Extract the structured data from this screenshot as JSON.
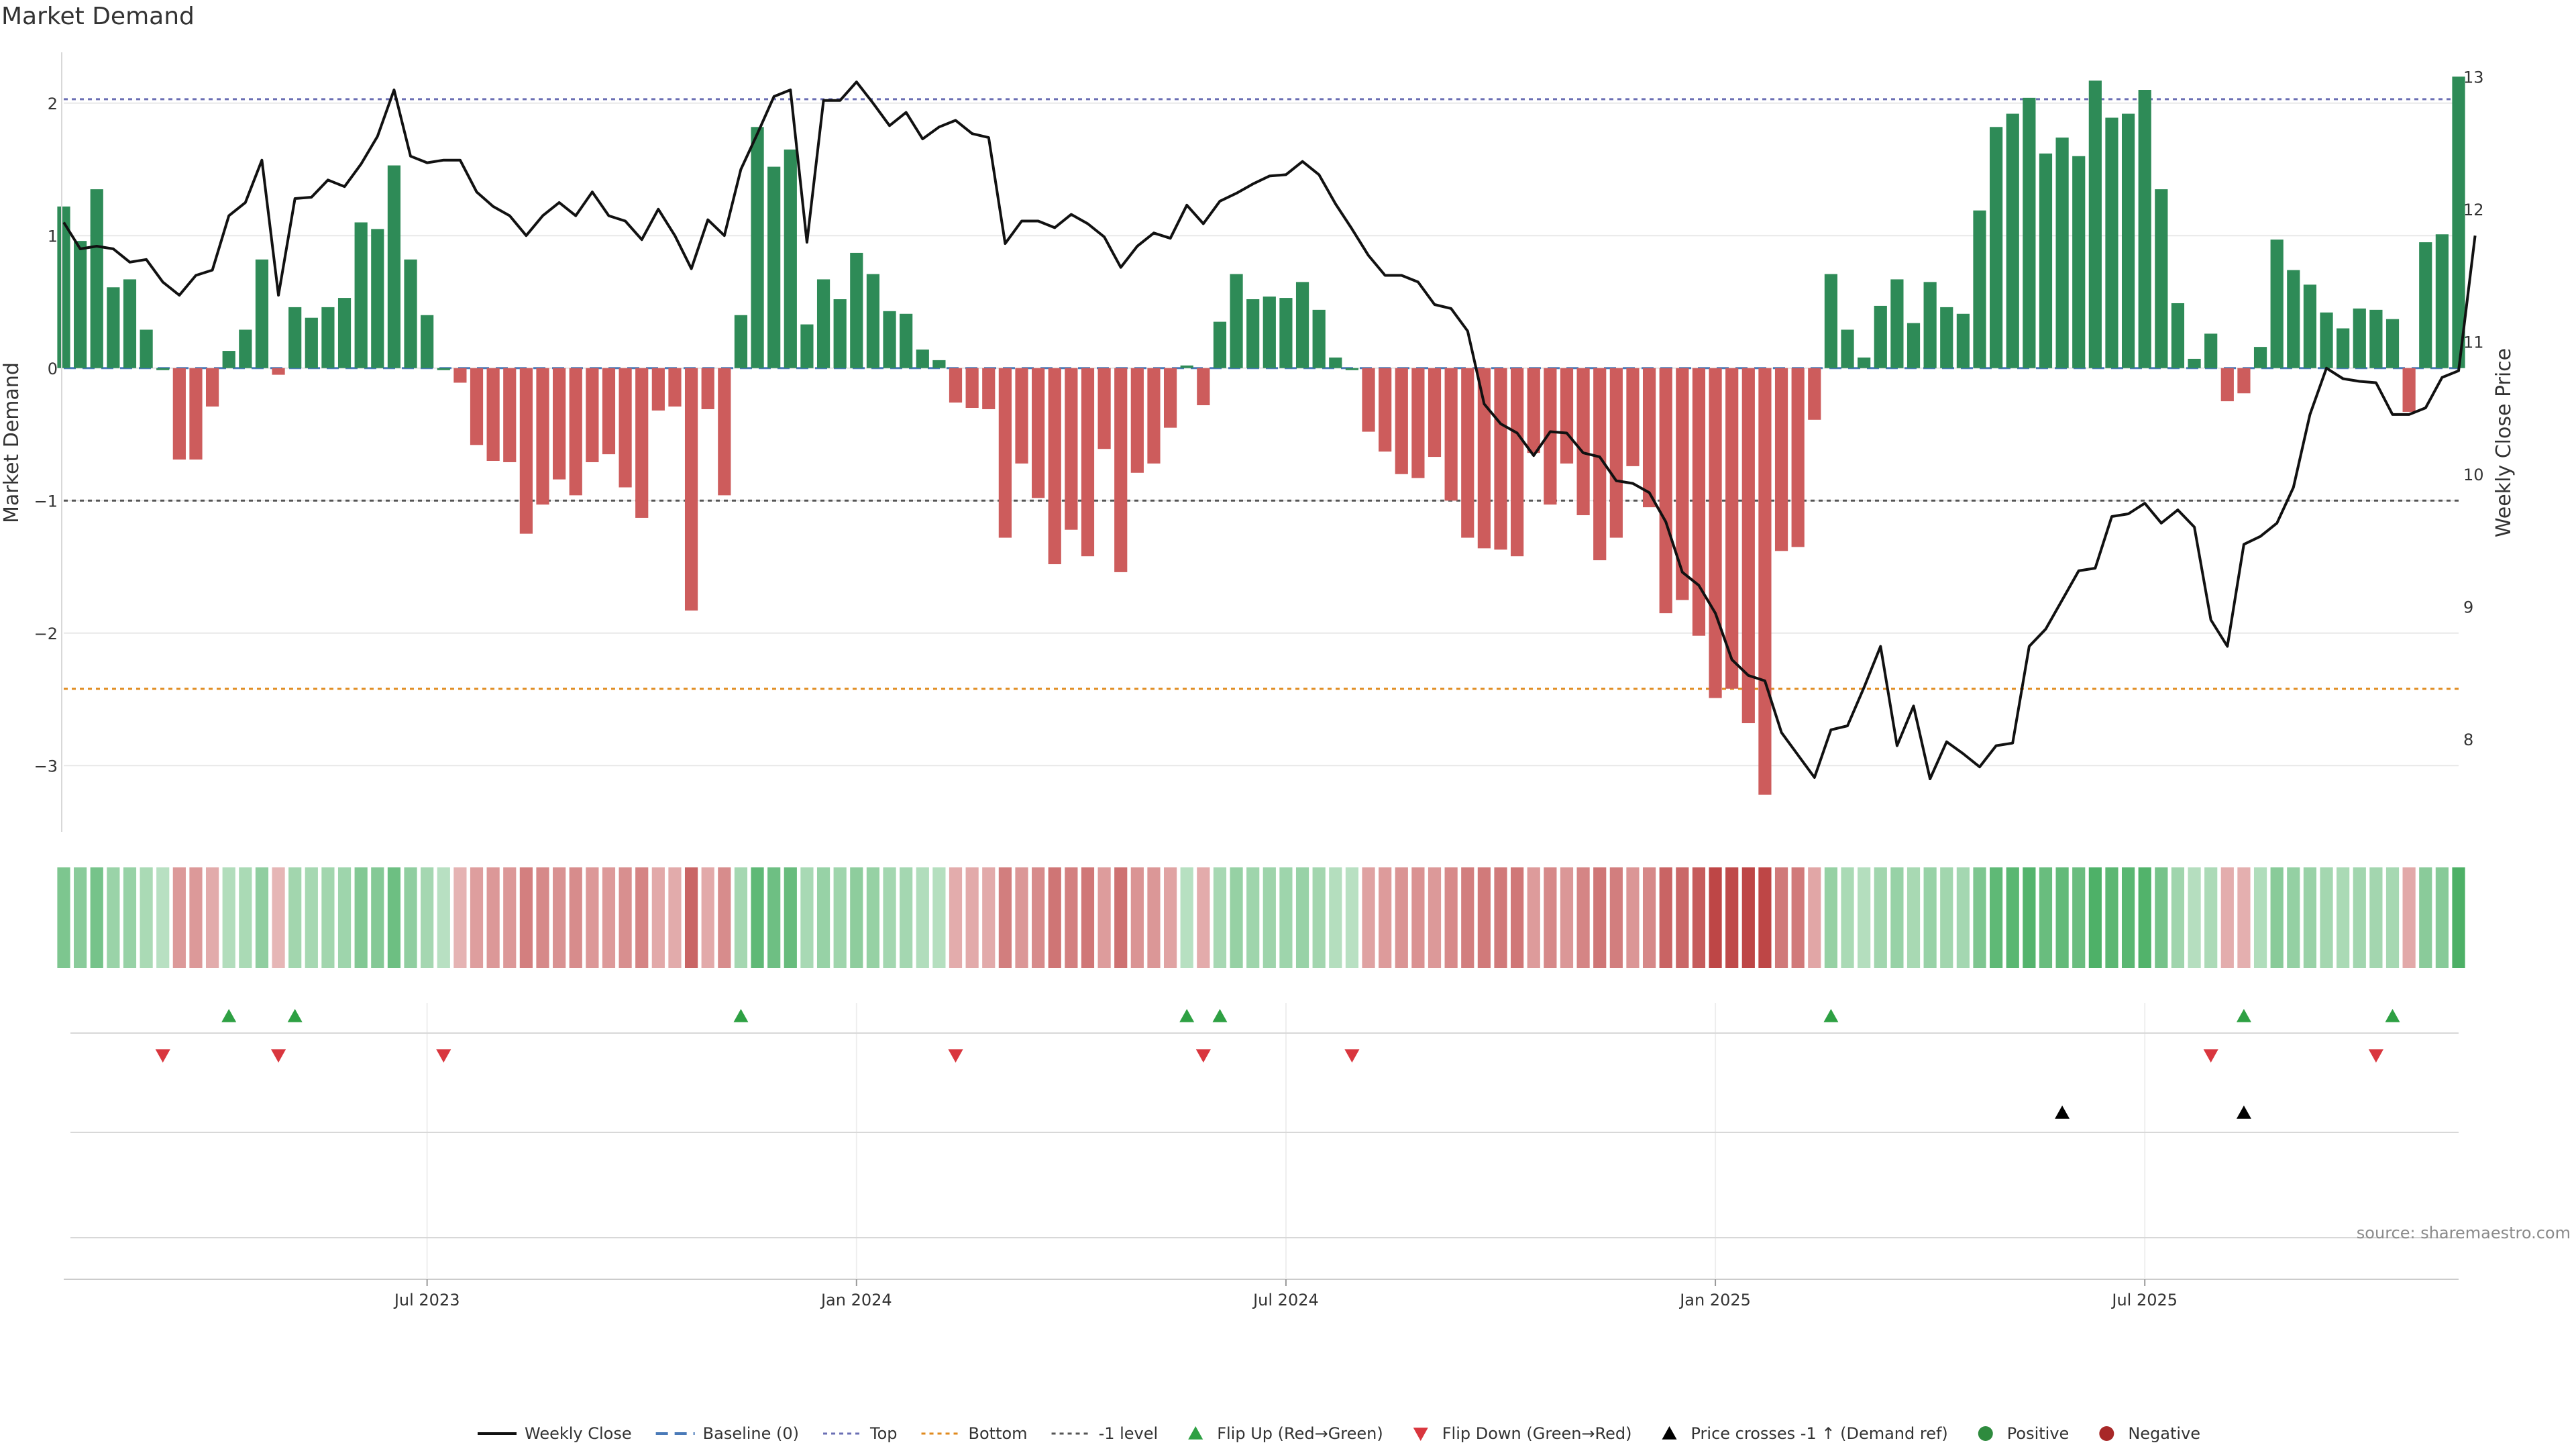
{
  "title": "Market Demand",
  "source": "source: sharemaestro.com",
  "chart_data": {
    "type": "bar",
    "title": "Market Demand",
    "ylabel": "Market Demand",
    "y2label": "Weekly Close Price",
    "ylim": [
      -3.5,
      2.5
    ],
    "y2lim": [
      7.3,
      13.3
    ],
    "yticks": [
      2,
      1,
      0,
      -1,
      -2,
      -3
    ],
    "y2ticks": [
      13,
      12,
      11,
      10,
      9,
      8
    ],
    "x_tick_labels": [
      "Jul 2023",
      "Jan 2024",
      "Jul 2024",
      "Jan 2025",
      "Jul 2025"
    ],
    "x_tick_index": [
      22,
      48,
      74,
      100,
      126
    ],
    "reference_lines": {
      "top": 2.03,
      "bottom": -2.42,
      "minus_one": -1.0,
      "baseline": 0
    },
    "demand": [
      1.22,
      0.96,
      1.35,
      0.61,
      0.67,
      0.29,
      0.0,
      -0.69,
      -0.69,
      -0.29,
      0.13,
      0.29,
      0.82,
      -0.05,
      0.46,
      0.38,
      0.46,
      0.53,
      1.1,
      1.05,
      1.53,
      0.82,
      0.4,
      0.0,
      -0.11,
      -0.58,
      -0.7,
      -0.71,
      -1.25,
      -1.03,
      -0.84,
      -0.96,
      -0.71,
      -0.65,
      -0.9,
      -1.13,
      -0.32,
      -0.29,
      -1.83,
      -0.31,
      -0.96,
      0.4,
      1.82,
      1.52,
      1.65,
      0.33,
      0.67,
      0.52,
      0.87,
      0.71,
      0.43,
      0.41,
      0.14,
      0.06,
      -0.26,
      -0.3,
      -0.31,
      -1.28,
      -0.72,
      -0.98,
      -1.48,
      -1.22,
      -1.42,
      -0.61,
      -1.54,
      -0.79,
      -0.72,
      -0.45,
      0.02,
      -0.28,
      0.35,
      0.71,
      0.52,
      0.54,
      0.53,
      0.65,
      0.44,
      0.08,
      0.0,
      -0.48,
      -0.63,
      -0.8,
      -0.83,
      -0.67,
      -1.0,
      -1.28,
      -1.36,
      -1.37,
      -1.42,
      -0.64,
      -1.03,
      -0.72,
      -1.11,
      -1.45,
      -1.28,
      -0.74,
      -1.05,
      -1.85,
      -1.75,
      -2.02,
      -2.49,
      -2.42,
      -2.68,
      -3.22,
      -1.38,
      -1.35,
      -0.39,
      0.71,
      0.29,
      0.08,
      0.47,
      0.67,
      0.34,
      0.65,
      0.46,
      0.41,
      1.19,
      1.82,
      1.92,
      2.04,
      1.62,
      1.74,
      1.6,
      2.17,
      1.89,
      1.92,
      2.1,
      1.35,
      0.49,
      0.07,
      0.26,
      -0.25,
      -0.19,
      0.16,
      0.97,
      0.74,
      0.63,
      0.42,
      0.3,
      0.45,
      0.44,
      0.37,
      -0.33,
      0.95,
      1.01,
      2.2
    ],
    "weekly_close": [
      11.9,
      11.7,
      11.72,
      11.7,
      11.6,
      11.62,
      11.45,
      11.35,
      11.5,
      11.54,
      11.95,
      12.05,
      12.37,
      11.35,
      12.08,
      12.09,
      12.22,
      12.17,
      12.34,
      12.55,
      12.9,
      12.4,
      12.35,
      12.37,
      12.37,
      12.13,
      12.02,
      11.95,
      11.8,
      11.95,
      12.05,
      11.95,
      12.13,
      11.95,
      11.91,
      11.77,
      12.0,
      11.8,
      11.55,
      11.92,
      11.8,
      12.3,
      12.57,
      12.85,
      12.9,
      11.75,
      12.82,
      12.82,
      12.96,
      12.8,
      12.63,
      12.73,
      12.53,
      12.62,
      12.67,
      12.57,
      12.54,
      11.74,
      11.91,
      11.91,
      11.86,
      11.96,
      11.89,
      11.79,
      11.56,
      11.72,
      11.82,
      11.78,
      12.03,
      11.89,
      12.06,
      12.12,
      12.19,
      12.25,
      12.26,
      12.36,
      12.26,
      12.04,
      11.85,
      11.65,
      11.5,
      11.5,
      11.45,
      11.28,
      11.25,
      11.08,
      10.53,
      10.38,
      10.31,
      10.14,
      10.32,
      10.31,
      10.16,
      10.13,
      9.95,
      9.93,
      9.86,
      9.64,
      9.26,
      9.16,
      8.95,
      8.6,
      8.48,
      8.44,
      8.05,
      7.88,
      7.71,
      8.07,
      8.1,
      8.39,
      8.7,
      7.95,
      8.25,
      7.7,
      7.98,
      7.89,
      7.79,
      7.95,
      7.97,
      8.7,
      8.83,
      9.05,
      9.27,
      9.29,
      9.68,
      9.7,
      9.78,
      9.63,
      9.73,
      9.6,
      8.9,
      8.7,
      9.47,
      9.53,
      9.63,
      9.9,
      10.45,
      10.8,
      10.72,
      10.7,
      10.69,
      10.45,
      10.45,
      10.5,
      10.73,
      10.78,
      11.8
    ],
    "flip_up_index": [
      10,
      14,
      41,
      68,
      70,
      107,
      132,
      141
    ],
    "flip_down_index": [
      6,
      13,
      23,
      54,
      69,
      78,
      130,
      140
    ],
    "price_cross_index": [
      121,
      132
    ],
    "legend": [
      {
        "label": "Weekly Close",
        "kind": "line",
        "color": "#111111"
      },
      {
        "label": "Baseline (0)",
        "kind": "dash",
        "color": "#4a7ab8"
      },
      {
        "label": "Top",
        "kind": "dot",
        "color": "#6b6fb4"
      },
      {
        "label": "Bottom",
        "kind": "dot",
        "color": "#e08a1e"
      },
      {
        "label": "-1 level",
        "kind": "dot",
        "color": "#555555"
      },
      {
        "label": "Flip Up (Red→Green)",
        "kind": "tri-up",
        "color": "#2ea043"
      },
      {
        "label": "Flip Down (Green→Red)",
        "kind": "tri-down",
        "color": "#d9363e"
      },
      {
        "label": "Price crosses -1 ↑ (Demand ref)",
        "kind": "tri-up",
        "color": "#000000"
      },
      {
        "label": "Positive",
        "kind": "dot-mark",
        "color": "#2e8b3e"
      },
      {
        "label": "Negative",
        "kind": "dot-mark",
        "color": "#a82828"
      }
    ]
  },
  "colors": {
    "positive": "#2e8b57",
    "negative": "#cd5c5c",
    "close": "#111111",
    "grid": "#e8e8e8"
  }
}
